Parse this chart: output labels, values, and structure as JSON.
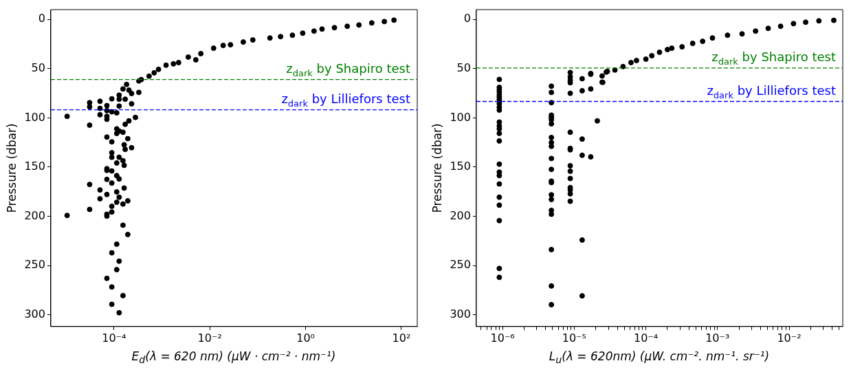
{
  "chart_data": [
    {
      "type": "scatter",
      "xlabel": "E$_{d}$(λ = 620 nm) (μW · cm⁻² · nm⁻¹)",
      "ylabel": "Pressure (dbar)",
      "log": "x",
      "grid": false,
      "legend": false,
      "marker": "circle",
      "xlim": [
        4.8e-06,
        214
      ],
      "xticks": [
        {
          "value": 0.0001,
          "label": "10⁻⁴"
        },
        {
          "value": 0.01,
          "label": "10⁻²"
        },
        {
          "value": 1,
          "label": "10⁰"
        },
        {
          "value": 100,
          "label": "10²"
        }
      ],
      "ylim": [
        312,
        -10
      ],
      "yticks": [
        0,
        50,
        100,
        150,
        200,
        250,
        300
      ],
      "ref_lines": [
        {
          "axis": "y",
          "value": 61,
          "label": "z$_{dark}$ by Shapiro test",
          "color": "#008000",
          "line_style": "dashed"
        },
        {
          "axis": "y",
          "value": 91.7,
          "label": "z$_{dark}$ by Lilliefors test",
          "color": "#0000ff",
          "line_style": "dashed"
        }
      ],
      "series": [
        {
          "color": "#000000",
          "x": [
            1.05e-05,
            3.1e-05,
            3.1e-05,
            5.1e-05,
            5.1e-05,
            5.1e-05,
            7.1e-05,
            7.1e-05,
            7.1e-05,
            7.1e-05,
            9e-05,
            9e-05,
            0.000114,
            0.000128,
            0.000128,
            0.000128,
            0.000154,
            0.000183,
            0.000171,
            0.000205,
            0.000233,
            0.000233,
            0.00033,
            0.00033,
            3.1e-05,
            7.1e-05,
            9e-05,
            0.000114,
            0.000114,
            0.000128,
            0.000154,
            0.000171,
            0.000205,
            0.00028,
            0.000194,
            0.000163,
            0.000171,
            0.000233,
            9e-05,
            9e-05,
            0.000114,
            0.000128,
            0.000154,
            0.000163,
            7.1e-05,
            7.1e-05,
            9e-05,
            0.000114,
            0.000128,
            9e-05,
            7.1e-05,
            0.000163,
            3.1e-05,
            5.1e-05,
            7.1e-05,
            5.1e-05,
            0.000114,
            0.000128,
            0.000194,
            0.000154,
            0.000114,
            9e-05,
            9e-05,
            7.1e-05,
            7.1e-05,
            3.1e-05,
            1.05e-05,
            0.000154,
            0.000194,
            0.000114,
            9e-05,
            0.000128,
            0.000114,
            7.1e-05,
            9e-05,
            0.000154,
            9e-05,
            0.000128,
            0.00037,
            0.00054,
            0.00069,
            0.00085,
            0.00122,
            0.00174,
            0.00223,
            0.00355,
            0.0051,
            0.0065,
            0.012,
            0.019,
            0.027,
            0.05,
            0.079,
            0.18,
            0.3,
            0.53,
            0.87,
            1.5,
            2.2,
            4,
            7.4,
            13,
            24,
            44,
            70
          ],
          "values": [
            98.4,
            84.5,
            88.7,
            83.1,
            90.3,
            96.8,
            87.5,
            92.6,
            98.4,
            101.4,
            80.6,
            93.8,
            94.9,
            76.9,
            81,
            88,
            70.6,
            66,
            81,
            71.8,
            75.2,
            85.7,
            74.1,
            62.5,
            107.4,
            119.5,
            124.3,
            111.1,
            115.8,
            113.4,
            114.6,
            106.5,
            103,
            99.5,
            121.1,
            127.3,
            132,
            130.3,
            135.4,
            140,
            145.8,
            140,
            143.5,
            148.2,
            151.6,
            153.3,
            153.9,
            158.6,
            162,
            166.2,
            162.5,
            171.3,
            167.6,
            173.2,
            177.8,
            182.2,
            175.2,
            180.6,
            184.3,
            187.5,
            185.7,
            189.8,
            195.6,
            197.9,
            199.8,
            193,
            199.1,
            209,
            218.5,
            228.3,
            237.1,
            245.6,
            254.2,
            263,
            271.8,
            280.6,
            289.4,
            298,
            61.1,
            57.6,
            54.2,
            50.7,
            46.5,
            45.1,
            43.8,
            38.2,
            41,
            34.7,
            29.2,
            26.4,
            25.7,
            22.9,
            20.8,
            18.8,
            17.4,
            16,
            13.9,
            11.8,
            9.7,
            8.3,
            6.9,
            5.6,
            3.5,
            2.1,
            0.7
          ]
        }
      ]
    },
    {
      "type": "scatter",
      "xlabel": "L$_{u}$(λ = 620nm) (μW. cm⁻². nm⁻¹. sr⁻¹)",
      "ylabel": "Pressure (dbar)",
      "log": "x",
      "grid": false,
      "legend": false,
      "marker": "circle",
      "xlim": [
        4.3e-07,
        0.056
      ],
      "xticks": [
        {
          "value": 5e-07,
          "label": null
        },
        {
          "value": 6e-07,
          "label": null
        },
        {
          "value": 7e-07,
          "label": null
        },
        {
          "value": 8e-07,
          "label": null
        },
        {
          "value": 9e-07,
          "label": null
        },
        {
          "value": 1e-06,
          "label": "10⁻⁶"
        },
        {
          "value": 2e-06,
          "label": null
        },
        {
          "value": 3e-06,
          "label": null
        },
        {
          "value": 4e-06,
          "label": null
        },
        {
          "value": 5e-06,
          "label": null
        },
        {
          "value": 6e-06,
          "label": null
        },
        {
          "value": 7e-06,
          "label": null
        },
        {
          "value": 8e-06,
          "label": null
        },
        {
          "value": 9e-06,
          "label": null
        },
        {
          "value": 1e-05,
          "label": "10⁻⁵"
        },
        {
          "value": 2e-05,
          "label": null
        },
        {
          "value": 3e-05,
          "label": null
        },
        {
          "value": 4e-05,
          "label": null
        },
        {
          "value": 5e-05,
          "label": null
        },
        {
          "value": 6e-05,
          "label": null
        },
        {
          "value": 7e-05,
          "label": null
        },
        {
          "value": 8e-05,
          "label": null
        },
        {
          "value": 9e-05,
          "label": null
        },
        {
          "value": 0.0001,
          "label": "10⁻⁴"
        },
        {
          "value": 0.0002,
          "label": null
        },
        {
          "value": 0.0003,
          "label": null
        },
        {
          "value": 0.0004,
          "label": null
        },
        {
          "value": 0.0005,
          "label": null
        },
        {
          "value": 0.0006,
          "label": null
        },
        {
          "value": 0.0007,
          "label": null
        },
        {
          "value": 0.0008,
          "label": null
        },
        {
          "value": 0.0009,
          "label": null
        },
        {
          "value": 0.001,
          "label": "10⁻³"
        },
        {
          "value": 0.002,
          "label": null
        },
        {
          "value": 0.003,
          "label": null
        },
        {
          "value": 0.004,
          "label": null
        },
        {
          "value": 0.005,
          "label": null
        },
        {
          "value": 0.006,
          "label": null
        },
        {
          "value": 0.007,
          "label": null
        },
        {
          "value": 0.008,
          "label": null
        },
        {
          "value": 0.009,
          "label": null
        },
        {
          "value": 0.01,
          "label": "10⁻²"
        },
        {
          "value": 0.02,
          "label": null
        },
        {
          "value": 0.03,
          "label": null
        },
        {
          "value": 0.04,
          "label": null
        },
        {
          "value": 0.05,
          "label": null
        }
      ],
      "ylim": [
        312,
        -10
      ],
      "yticks": [
        0,
        50,
        100,
        150,
        200,
        250,
        300
      ],
      "ref_lines": [
        {
          "axis": "y",
          "value": 49.3,
          "label": "z$_{dark}$ by Shapiro test",
          "color": "#008000",
          "line_style": "dashed"
        },
        {
          "axis": "y",
          "value": 83.3,
          "label": "z$_{dark}$ by Lilliefors test",
          "color": "#0000ff",
          "line_style": "dashed"
        }
      ],
      "series": [
        {
          "color": "#000000",
          "x": [
            9e-07,
            9e-07,
            9e-07,
            9e-07,
            9e-07,
            9e-07,
            9e-07,
            9e-07,
            9e-07,
            9e-07,
            9e-07,
            9e-07,
            9e-07,
            9e-07,
            9e-07,
            9e-07,
            9e-07,
            9e-07,
            9e-07,
            9e-07,
            9e-07,
            9e-07,
            9e-07,
            9e-07,
            9e-07,
            4.8e-06,
            4.8e-06,
            4.8e-06,
            4.8e-06,
            4.8e-06,
            4.8e-06,
            4.8e-06,
            4.8e-06,
            4.8e-06,
            4.8e-06,
            4.8e-06,
            4.8e-06,
            4.8e-06,
            4.8e-06,
            4.8e-06,
            4.8e-06,
            4.8e-06,
            4.8e-06,
            4.8e-06,
            4.8e-06,
            4.8e-06,
            8.8e-06,
            8.8e-06,
            8.8e-06,
            8.8e-06,
            8.8e-06,
            8.8e-06,
            8.8e-06,
            8.8e-06,
            8.8e-06,
            8.8e-06,
            8.8e-06,
            8.8e-06,
            8.8e-06,
            8.8e-06,
            8.8e-06,
            1.29e-05,
            1.29e-05,
            1.29e-05,
            1.29e-05,
            1.29e-05,
            1.29e-05,
            1.7e-05,
            1.7e-05,
            1.7e-05,
            2.1e-05,
            2.45e-05,
            2.45e-05,
            2.9e-05,
            1.7e-05,
            2.5e-05,
            2.8e-05,
            3.7e-05,
            4.8e-05,
            6.2e-05,
            7.4e-05,
            0.0001,
            0.000121,
            0.000155,
            0.0002,
            0.00023,
            0.00032,
            0.00045,
            0.00062,
            0.00085,
            0.00138,
            0.0022,
            0.0034,
            0.0051,
            0.0076,
            0.0115,
            0.017,
            0.026,
            0.042
          ],
          "values": [
            60.9,
            69,
            71.3,
            73.6,
            76.4,
            78.7,
            81,
            83.3,
            85.6,
            89.1,
            92.1,
            104.2,
            108.1,
            111.1,
            115.7,
            123.4,
            147,
            155.1,
            158.6,
            167.1,
            180.6,
            188.7,
            204.4,
            253,
            262,
            67.8,
            74.1,
            84.5,
            97.2,
            99.5,
            101.8,
            106,
            119.9,
            125,
            128.9,
            141.2,
            152.3,
            164.3,
            165.7,
            178.2,
            182.9,
            194,
            197.9,
            233.8,
            270.8,
            289.8,
            53.9,
            58.3,
            61.8,
            64.3,
            75,
            114.6,
            131,
            132.4,
            148.6,
            154.2,
            161.6,
            170.8,
            173.1,
            177.1,
            184.7,
            60.2,
            72.4,
            121.5,
            138,
            224.1,
            280.8,
            54.9,
            70.6,
            139.6,
            103,
            57.4,
            63.7,
            52.8,
            55.6,
            63.9,
            53.5,
            51.4,
            47.9,
            43.8,
            41.7,
            40.3,
            36.8,
            33.3,
            30.6,
            29.2,
            27.8,
            24.3,
            22.2,
            18.8,
            16,
            14.6,
            11.8,
            9,
            6.9,
            4.2,
            2.8,
            1.4,
            0.9
          ]
        }
      ]
    }
  ]
}
